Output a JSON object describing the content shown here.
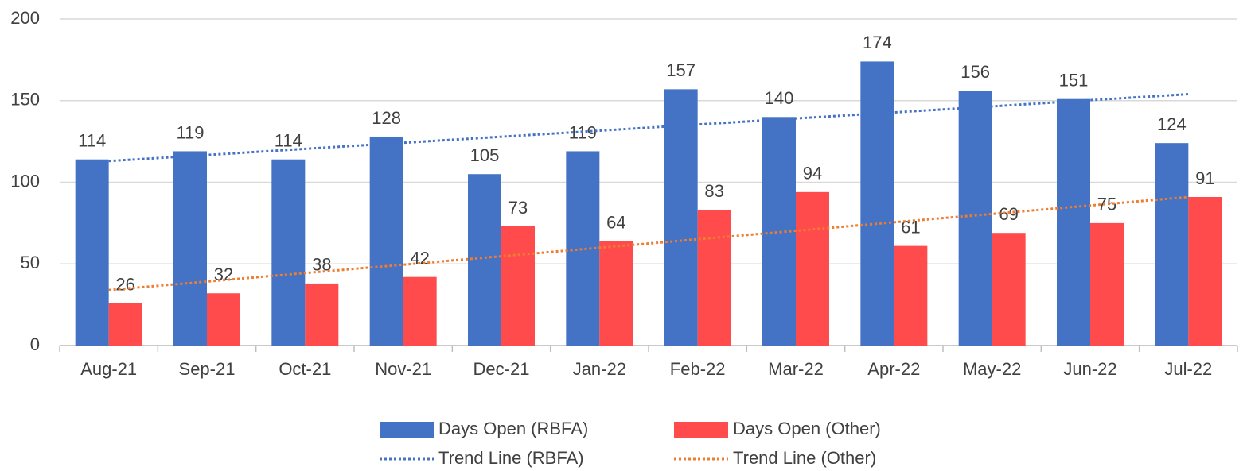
{
  "chart_data": {
    "type": "bar",
    "categories": [
      "Aug-21",
      "Sep-21",
      "Oct-21",
      "Nov-21",
      "Dec-21",
      "Jan-22",
      "Feb-22",
      "Mar-22",
      "Apr-22",
      "May-22",
      "Jun-22",
      "Jul-22"
    ],
    "series": [
      {
        "name": "Days Open (RBFA)",
        "type": "bar",
        "color": "#4472c4",
        "values": [
          114,
          119,
          114,
          128,
          105,
          119,
          157,
          140,
          174,
          156,
          151,
          124
        ]
      },
      {
        "name": "Days Open (Other)",
        "type": "bar",
        "color": "#ff4b4b",
        "values": [
          26,
          32,
          38,
          42,
          73,
          64,
          83,
          94,
          61,
          69,
          75,
          91
        ]
      },
      {
        "name": "Trend Line (RBFA)",
        "type": "line",
        "color": "#4472c4",
        "values": [
          113,
          116.7,
          120.5,
          124.2,
          127.9,
          131.6,
          135.4,
          139.1,
          142.8,
          146.5,
          150.3,
          154
        ]
      },
      {
        "name": "Trend Line (Other)",
        "type": "line",
        "color": "#ed7d31",
        "values": [
          34,
          39.2,
          44.4,
          49.5,
          54.7,
          59.9,
          65.1,
          70.3,
          75.5,
          80.6,
          85.8,
          91
        ]
      }
    ],
    "ylim": [
      0,
      200
    ],
    "yticks": [
      0,
      50,
      100,
      150,
      200
    ],
    "grid": true
  }
}
